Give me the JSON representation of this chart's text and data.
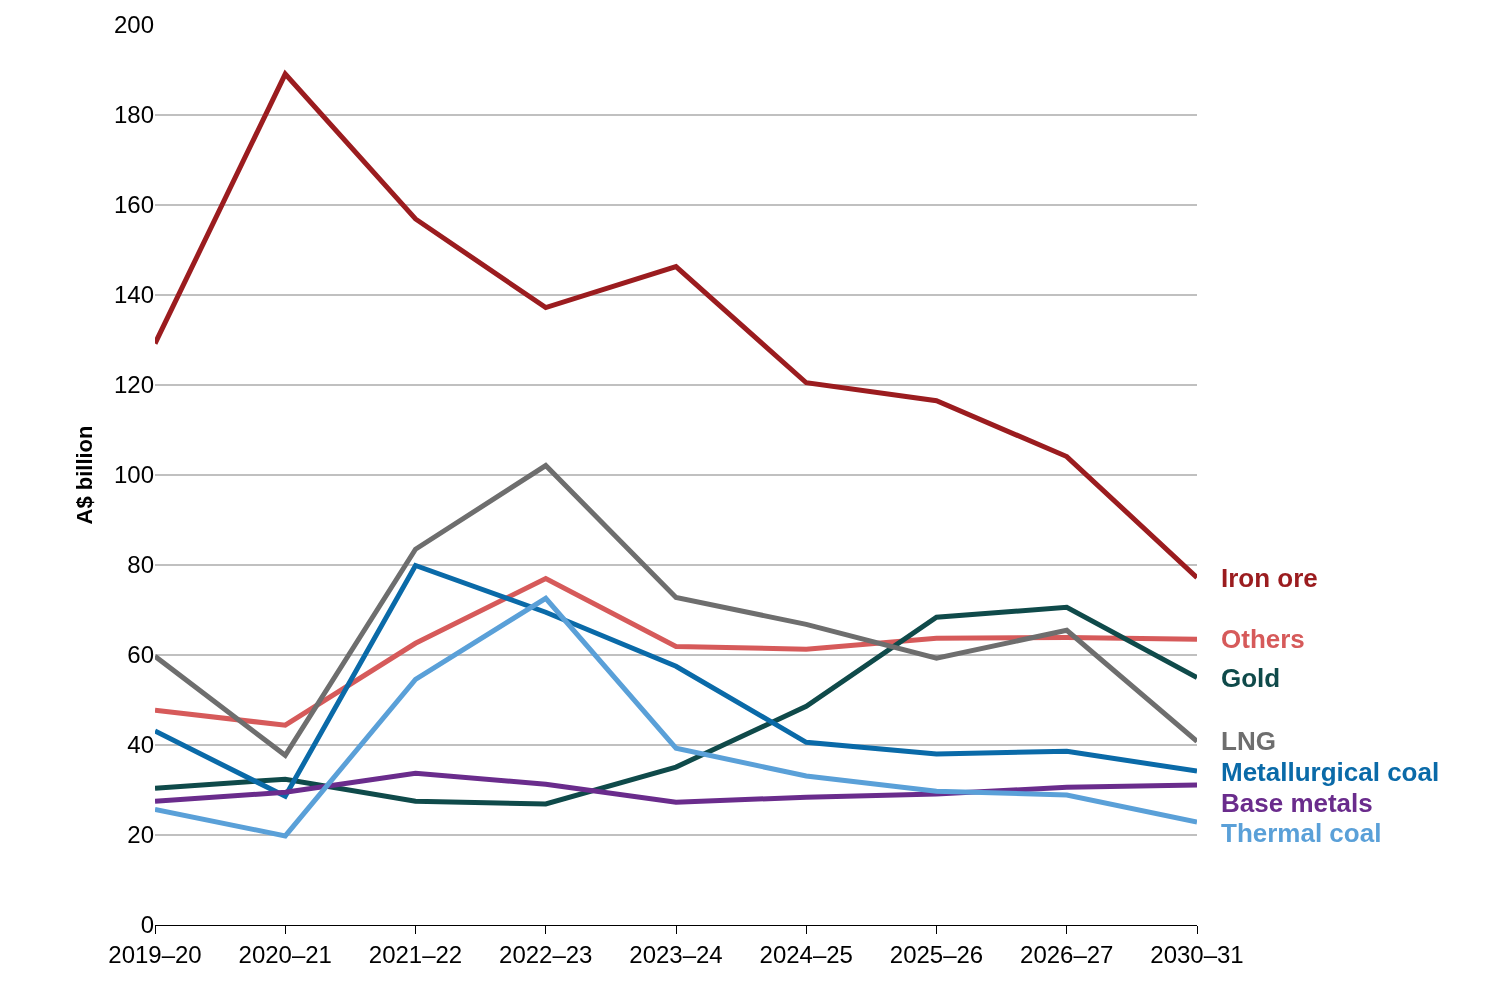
{
  "chart_data": {
    "type": "line",
    "ylabel": "A$ billion",
    "categories": [
      "2019–20",
      "2020–21",
      "2021–22",
      "2022–23",
      "2023–24",
      "2024–25",
      "2025–26",
      "2026–27",
      "2030–31"
    ],
    "series": [
      {
        "name": "Iron ore",
        "color": "#9b1c1f",
        "values": [
          129.2,
          189.1,
          156.9,
          137.2,
          146.3,
          120.5,
          116.5,
          104.1,
          77.2
        ]
      },
      {
        "name": "Others",
        "color": "#d65a5a",
        "values": [
          47.7,
          44.4,
          62.6,
          77.0,
          61.9,
          61.3,
          63.7,
          63.9,
          63.5
        ]
      },
      {
        "name": "Gold",
        "color": "#0f4a4a",
        "values": [
          30.4,
          32.4,
          27.5,
          26.9,
          35.1,
          48.6,
          68.4,
          70.6,
          55.0
        ]
      },
      {
        "name": "LNG",
        "color": "#6e6e6e",
        "values": [
          59.7,
          37.7,
          83.5,
          102.1,
          72.8,
          66.8,
          59.3,
          65.5,
          40.8
        ]
      },
      {
        "name": "Metallurgical coal",
        "color": "#0a6aa8",
        "values": [
          43.1,
          28.6,
          79.9,
          69.5,
          57.5,
          40.6,
          38.0,
          38.6,
          34.2
        ]
      },
      {
        "name": "Base metals",
        "color": "#6a2c8c",
        "values": [
          27.5,
          29.5,
          33.7,
          31.3,
          27.3,
          28.4,
          29.1,
          30.6,
          31.1
        ]
      },
      {
        "name": "Thermal coal",
        "color": "#5aa0d8",
        "values": [
          25.7,
          19.8,
          54.6,
          72.6,
          39.3,
          33.1,
          29.7,
          28.9,
          22.9
        ]
      }
    ],
    "ylim": [
      0,
      200
    ],
    "yticks": [
      0,
      20,
      40,
      60,
      80,
      100,
      120,
      140,
      160,
      180,
      200
    ],
    "grid": "y",
    "legend": false,
    "marker": "none",
    "line_style": "solid"
  }
}
